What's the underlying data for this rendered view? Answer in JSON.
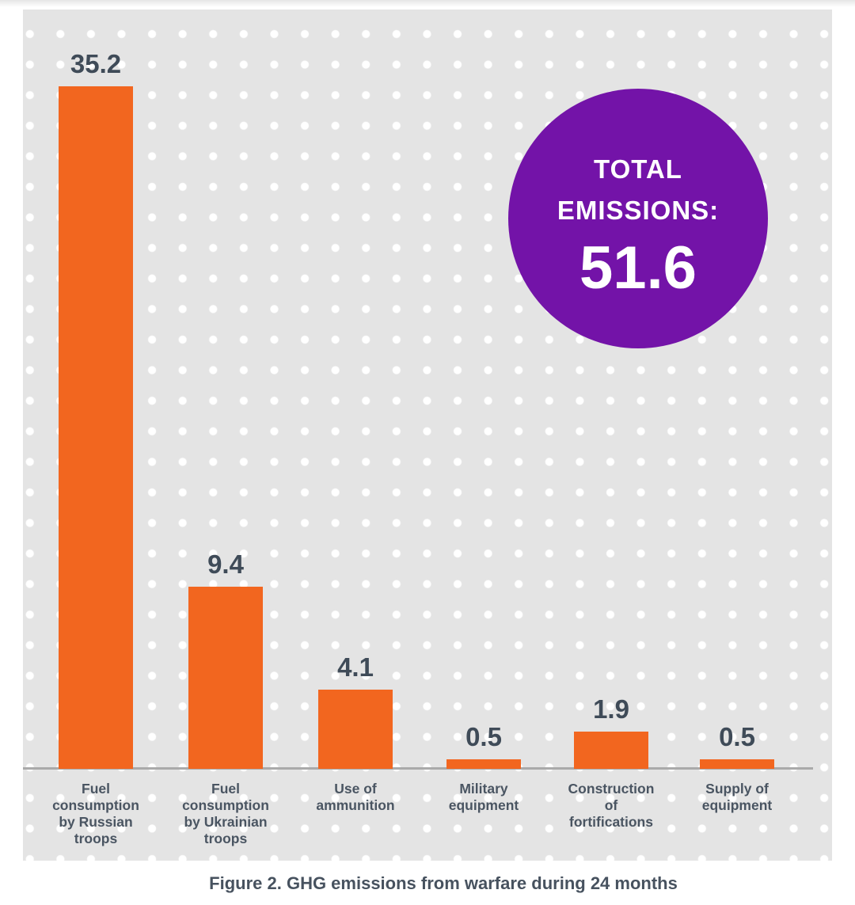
{
  "figure": {
    "caption": "Figure 2. GHG emissions from warfare during 24 months"
  },
  "total_badge": {
    "line1": "TOTAL",
    "line2": "EMISSIONS:",
    "value": "51.6",
    "bg_color": "#7313A8",
    "text_color": "#FFFFFF"
  },
  "chart_data": {
    "type": "bar",
    "title": "",
    "xlabel": "",
    "ylabel": "",
    "categories": [
      "Fuel consumption by Russian troops",
      "Fuel consumption by Ukrainian troops",
      "Use of ammunition",
      "Military equipment",
      "Construction of fortifications",
      "Supply of equipment"
    ],
    "category_lines": [
      "Fuel\nconsumption\nby Russian\ntroops",
      "Fuel\nconsumption\nby Ukrainian\ntroops",
      "Use of\nammunition",
      "Military\nequipment",
      "Construction\nof\nfortifications",
      "Supply of\nequipment"
    ],
    "values": [
      35.2,
      9.4,
      4.1,
      0.5,
      1.9,
      0.5
    ],
    "value_labels": [
      "35.2",
      "9.4",
      "4.1",
      "0.5",
      "1.9",
      "0.5"
    ],
    "total": 51.6,
    "ylim": [
      0,
      36
    ],
    "legend": "none",
    "grid": "white dot pattern background",
    "bar_color": "#F2661F",
    "panel_bg": "#E4E4E4",
    "dot_color": "#FFFFFF",
    "axis_line_color": "#AAAAAA",
    "value_label_color": "#3F4B58",
    "category_label_color": "#4A5562",
    "caption_color": "#47525F"
  }
}
